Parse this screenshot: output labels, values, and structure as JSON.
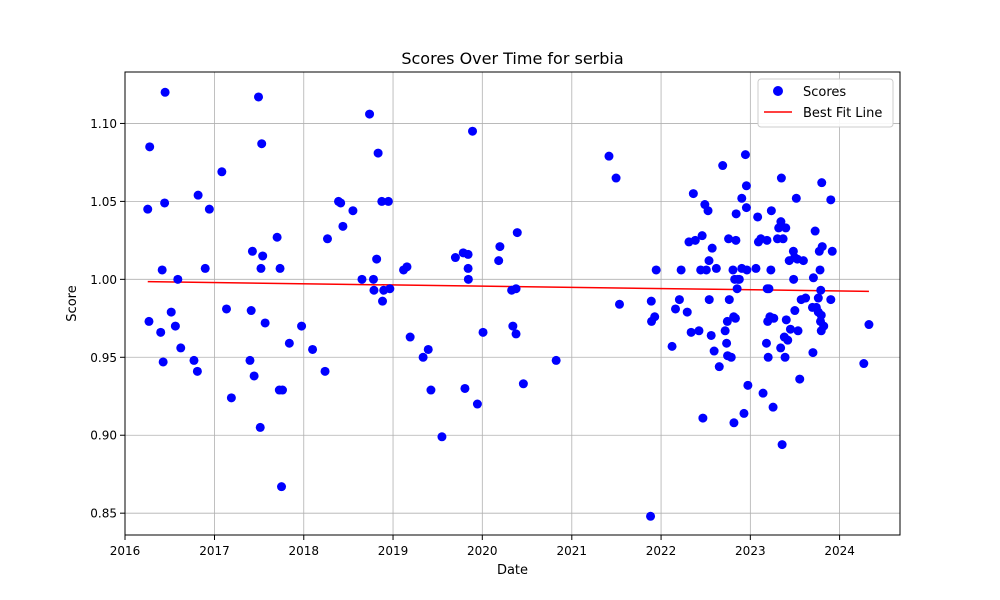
{
  "chart_data": {
    "type": "scatter",
    "title": "Scores Over Time for serbia",
    "xlabel": "Date",
    "ylabel": "Score",
    "x_axis_type": "date",
    "xlim": [
      "2016-01-01",
      "2024-09-04"
    ],
    "ylim": [
      0.836,
      1.133
    ],
    "xticks": [
      "2016",
      "2017",
      "2018",
      "2019",
      "2020",
      "2021",
      "2022",
      "2023",
      "2024"
    ],
    "yticks": [
      "0.85",
      "0.90",
      "0.95",
      "1.00",
      "1.05",
      "1.10"
    ],
    "grid": true,
    "legend": {
      "position": "upper right",
      "entries": [
        {
          "label": "Scores",
          "kind": "marker",
          "color": "#0000ff"
        },
        {
          "label": "Best Fit Line",
          "kind": "line",
          "color": "#ff0000"
        }
      ]
    },
    "series": [
      {
        "name": "Scores",
        "color": "#0000ff",
        "points": [
          [
            "2016-04-03",
            1.045
          ],
          [
            "2016-04-08",
            0.973
          ],
          [
            "2016-04-11",
            1.085
          ],
          [
            "2016-05-26",
            0.966
          ],
          [
            "2016-06-01",
            1.006
          ],
          [
            "2016-06-05",
            0.947
          ],
          [
            "2016-06-11",
            1.049
          ],
          [
            "2016-06-13",
            1.12
          ],
          [
            "2016-07-08",
            0.979
          ],
          [
            "2016-07-25",
            0.97
          ],
          [
            "2016-08-04",
            1.0
          ],
          [
            "2016-08-16",
            0.956
          ],
          [
            "2016-10-09",
            0.948
          ],
          [
            "2016-10-23",
            0.941
          ],
          [
            "2016-10-26",
            1.054
          ],
          [
            "2016-11-24",
            1.007
          ],
          [
            "2016-12-11",
            1.045
          ],
          [
            "2017-01-31",
            1.069
          ],
          [
            "2017-02-19",
            0.981
          ],
          [
            "2017-03-11",
            0.924
          ],
          [
            "2017-05-26",
            0.948
          ],
          [
            "2017-05-31",
            0.98
          ],
          [
            "2017-06-05",
            1.018
          ],
          [
            "2017-06-12",
            0.938
          ],
          [
            "2017-06-30",
            1.117
          ],
          [
            "2017-07-07",
            0.905
          ],
          [
            "2017-07-10",
            1.007
          ],
          [
            "2017-07-13",
            1.087
          ],
          [
            "2017-07-17",
            1.015
          ],
          [
            "2017-07-27",
            0.972
          ],
          [
            "2017-09-14",
            1.027
          ],
          [
            "2017-09-23",
            0.929
          ],
          [
            "2017-09-26",
            1.007
          ],
          [
            "2017-10-02",
            0.867
          ],
          [
            "2017-10-06",
            0.929
          ],
          [
            "2017-11-03",
            0.959
          ],
          [
            "2017-12-23",
            0.97
          ],
          [
            "2018-02-06",
            0.955
          ],
          [
            "2018-03-29",
            0.941
          ],
          [
            "2018-04-08",
            1.026
          ],
          [
            "2018-05-23",
            1.05
          ],
          [
            "2018-06-01",
            1.049
          ],
          [
            "2018-06-10",
            1.034
          ],
          [
            "2018-07-21",
            1.044
          ],
          [
            "2018-08-27",
            1.0
          ],
          [
            "2018-09-27",
            1.106
          ],
          [
            "2018-10-13",
            1.0
          ],
          [
            "2018-10-15",
            0.993
          ],
          [
            "2018-10-26",
            1.013
          ],
          [
            "2018-11-01",
            1.081
          ],
          [
            "2018-11-16",
            1.05
          ],
          [
            "2018-11-19",
            0.986
          ],
          [
            "2018-11-24",
            0.993
          ],
          [
            "2018-12-13",
            1.05
          ],
          [
            "2018-12-19",
            0.994
          ],
          [
            "2019-02-13",
            1.006
          ],
          [
            "2019-02-27",
            1.008
          ],
          [
            "2019-03-12",
            0.963
          ],
          [
            "2019-05-04",
            0.95
          ],
          [
            "2019-05-25",
            0.955
          ],
          [
            "2019-06-05",
            0.929
          ],
          [
            "2019-07-20",
            0.899
          ],
          [
            "2019-09-13",
            1.014
          ],
          [
            "2019-10-15",
            1.017
          ],
          [
            "2019-10-22",
            0.93
          ],
          [
            "2019-11-04",
            1.016
          ],
          [
            "2019-11-04",
            1.007
          ],
          [
            "2019-11-05",
            1.0
          ],
          [
            "2019-11-22",
            1.095
          ],
          [
            "2019-12-12",
            0.92
          ],
          [
            "2020-01-04",
            0.966
          ],
          [
            "2020-03-08",
            1.012
          ],
          [
            "2020-03-13",
            1.021
          ],
          [
            "2020-04-30",
            0.993
          ],
          [
            "2020-05-05",
            0.97
          ],
          [
            "2020-05-18",
            0.994
          ],
          [
            "2020-05-18",
            0.965
          ],
          [
            "2020-05-23",
            1.03
          ],
          [
            "2020-06-17",
            0.933
          ],
          [
            "2020-10-29",
            0.948
          ],
          [
            "2021-06-02",
            1.079
          ],
          [
            "2021-07-01",
            1.065
          ],
          [
            "2021-07-15",
            0.984
          ],
          [
            "2021-11-19",
            0.848
          ],
          [
            "2021-11-22",
            0.986
          ],
          [
            "2021-11-23",
            0.973
          ],
          [
            "2021-12-06",
            0.976
          ],
          [
            "2021-12-12",
            1.006
          ],
          [
            "2022-02-15",
            0.957
          ],
          [
            "2022-03-01",
            0.981
          ],
          [
            "2022-03-17",
            0.987
          ],
          [
            "2022-03-24",
            1.006
          ],
          [
            "2022-04-18",
            0.979
          ],
          [
            "2022-04-25",
            1.024
          ],
          [
            "2022-05-04",
            0.966
          ],
          [
            "2022-05-13",
            1.055
          ],
          [
            "2022-05-21",
            1.025
          ],
          [
            "2022-06-05",
            0.967
          ],
          [
            "2022-06-12",
            1.006
          ],
          [
            "2022-06-18",
            1.028
          ],
          [
            "2022-06-21",
            0.911
          ],
          [
            "2022-06-29",
            1.048
          ],
          [
            "2022-07-05",
            1.006
          ],
          [
            "2022-07-12",
            1.044
          ],
          [
            "2022-07-16",
            1.012
          ],
          [
            "2022-07-17",
            0.987
          ],
          [
            "2022-07-25",
            0.964
          ],
          [
            "2022-07-29",
            1.02
          ],
          [
            "2022-08-06",
            0.954
          ],
          [
            "2022-08-15",
            1.007
          ],
          [
            "2022-08-27",
            0.944
          ],
          [
            "2022-09-10",
            1.073
          ],
          [
            "2022-09-20",
            0.967
          ],
          [
            "2022-09-26",
            0.959
          ],
          [
            "2022-09-29",
            0.973
          ],
          [
            "2022-09-30",
            0.951
          ],
          [
            "2022-10-04",
            1.026
          ],
          [
            "2022-10-07",
            0.987
          ],
          [
            "2022-10-15",
            0.95
          ],
          [
            "2022-10-22",
            1.006
          ],
          [
            "2022-10-25",
            0.976
          ],
          [
            "2022-10-26",
            0.908
          ],
          [
            "2022-10-29",
            1.0
          ],
          [
            "2022-11-01",
            0.975
          ],
          [
            "2022-11-03",
            1.025
          ],
          [
            "2022-11-04",
            1.042
          ],
          [
            "2022-11-08",
            0.994
          ],
          [
            "2022-11-11",
            1.0
          ],
          [
            "2022-11-17",
            1.0
          ],
          [
            "2022-11-27",
            1.007
          ],
          [
            "2022-11-27",
            1.052
          ],
          [
            "2022-12-06",
            0.914
          ],
          [
            "2022-12-12",
            1.08
          ],
          [
            "2022-12-16",
            1.06
          ],
          [
            "2022-12-16",
            1.046
          ],
          [
            "2022-12-18",
            1.006
          ],
          [
            "2022-12-22",
            0.932
          ],
          [
            "2023-01-24",
            1.007
          ],
          [
            "2023-01-31",
            1.04
          ],
          [
            "2023-02-03",
            1.024
          ],
          [
            "2023-02-13",
            1.026
          ],
          [
            "2023-02-22",
            0.927
          ],
          [
            "2023-03-08",
            0.959
          ],
          [
            "2023-03-10",
            1.025
          ],
          [
            "2023-03-11",
            0.994
          ],
          [
            "2023-03-13",
            0.973
          ],
          [
            "2023-03-15",
            0.95
          ],
          [
            "2023-03-18",
            0.994
          ],
          [
            "2023-03-22",
            0.976
          ],
          [
            "2023-03-26",
            1.006
          ],
          [
            "2023-03-28",
            1.044
          ],
          [
            "2023-04-04",
            0.918
          ],
          [
            "2023-04-07",
            0.975
          ],
          [
            "2023-04-22",
            1.026
          ],
          [
            "2023-04-27",
            1.033
          ],
          [
            "2023-05-05",
            0.956
          ],
          [
            "2023-05-06",
            1.037
          ],
          [
            "2023-05-08",
            1.065
          ],
          [
            "2023-05-11",
            0.894
          ],
          [
            "2023-05-15",
            1.026
          ],
          [
            "2023-05-20",
            0.963
          ],
          [
            "2023-05-23",
            0.95
          ],
          [
            "2023-05-26",
            1.033
          ],
          [
            "2023-05-28",
            0.974
          ],
          [
            "2023-06-03",
            0.961
          ],
          [
            "2023-06-09",
            1.012
          ],
          [
            "2023-06-14",
            0.968
          ],
          [
            "2023-06-26",
            1.018
          ],
          [
            "2023-06-27",
            1.0
          ],
          [
            "2023-07-01",
            1.014
          ],
          [
            "2023-07-02",
            0.98
          ],
          [
            "2023-07-08",
            1.052
          ],
          [
            "2023-07-12",
            1.013
          ],
          [
            "2023-07-15",
            0.967
          ],
          [
            "2023-07-22",
            0.936
          ],
          [
            "2023-07-28",
            0.987
          ],
          [
            "2023-08-06",
            1.012
          ],
          [
            "2023-08-15",
            0.988
          ],
          [
            "2023-09-12",
            0.982
          ],
          [
            "2023-09-14",
            0.953
          ],
          [
            "2023-09-16",
            1.001
          ],
          [
            "2023-09-23",
            1.031
          ],
          [
            "2023-09-28",
            0.982
          ],
          [
            "2023-10-06",
            0.979
          ],
          [
            "2023-10-06",
            0.988
          ],
          [
            "2023-10-10",
            1.018
          ],
          [
            "2023-10-13",
            1.006
          ],
          [
            "2023-10-15",
            0.973
          ],
          [
            "2023-10-16",
            0.993
          ],
          [
            "2023-10-18",
            0.977
          ],
          [
            "2023-10-18",
            0.967
          ],
          [
            "2023-10-20",
            1.062
          ],
          [
            "2023-10-22",
            1.021
          ],
          [
            "2023-10-28",
            0.97
          ],
          [
            "2023-11-26",
            1.051
          ],
          [
            "2023-11-26",
            0.987
          ],
          [
            "2023-12-02",
            1.018
          ],
          [
            "2024-04-09",
            0.946
          ],
          [
            "2024-04-30",
            0.971
          ]
        ]
      },
      {
        "name": "Best Fit Line",
        "type": "line",
        "color": "#ff0000",
        "points": [
          [
            "2016-04-03",
            0.9985
          ],
          [
            "2024-04-30",
            0.9923
          ]
        ]
      }
    ]
  }
}
